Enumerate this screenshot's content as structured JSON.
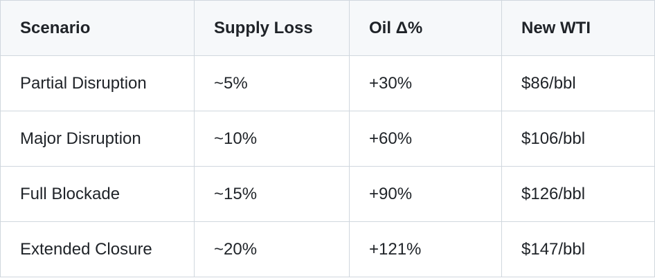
{
  "table": {
    "header": [
      "Scenario",
      "Supply Loss",
      "Oil Δ%",
      "New WTI"
    ],
    "rows": [
      [
        "Partial Disruption",
        "~5%",
        "+30%",
        "$86/bbl"
      ],
      [
        "Major Disruption",
        "~10%",
        "+60%",
        "$106/bbl"
      ],
      [
        "Full Blockade",
        "~15%",
        "+90%",
        "$126/bbl"
      ],
      [
        "Extended Closure",
        "~20%",
        "+121%",
        "$147/bbl"
      ]
    ]
  }
}
